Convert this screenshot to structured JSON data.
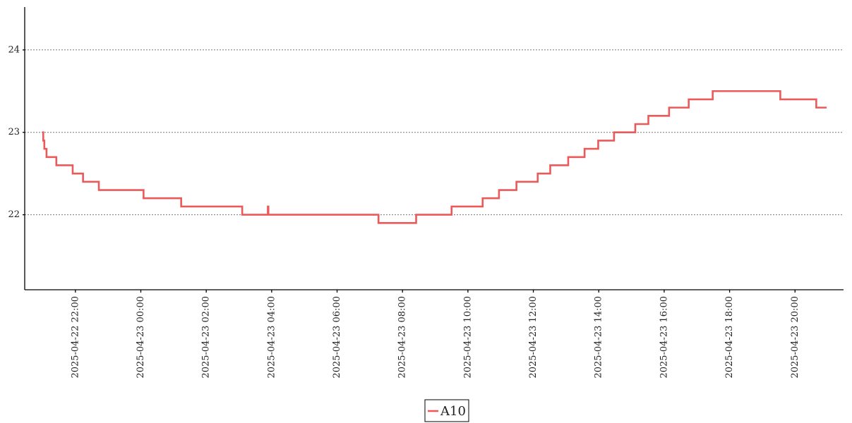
{
  "chart_data": {
    "type": "line",
    "step": "post",
    "x": [
      "2025-04-22 20:59",
      "2025-04-22 21:01",
      "2025-04-22 21:03",
      "2025-04-22 21:07",
      "2025-04-22 21:25",
      "2025-04-22 21:55",
      "2025-04-22 22:14",
      "2025-04-22 22:43",
      "2025-04-23 00:05",
      "2025-04-23 01:14",
      "2025-04-23 03:06",
      "2025-04-23 03:53",
      "2025-04-23 03:54",
      "2025-04-23 07:16",
      "2025-04-23 08:25",
      "2025-04-23 09:30",
      "2025-04-23 10:27",
      "2025-04-23 10:57",
      "2025-04-23 11:29",
      "2025-04-23 12:08",
      "2025-04-23 12:31",
      "2025-04-23 13:04",
      "2025-04-23 13:34",
      "2025-04-23 13:59",
      "2025-04-23 14:28",
      "2025-04-23 15:07",
      "2025-04-23 15:31",
      "2025-04-23 16:09",
      "2025-04-23 16:45",
      "2025-04-23 17:29",
      "2025-04-23 19:33",
      "2025-04-23 20:39",
      "2025-04-23 20:58"
    ],
    "series": [
      {
        "name": "A10",
        "color": "#eb5a5a",
        "values": [
          23.0,
          22.9,
          22.8,
          22.7,
          22.6,
          22.5,
          22.4,
          22.3,
          22.2,
          22.1,
          22.0,
          22.1,
          22.0,
          21.9,
          22.0,
          22.1,
          22.2,
          22.3,
          22.4,
          22.5,
          22.6,
          22.7,
          22.8,
          22.9,
          23.0,
          23.1,
          23.2,
          23.3,
          23.4,
          23.5,
          23.4,
          23.3,
          23.3
        ]
      }
    ],
    "xlim": [
      "2025-04-22 20:27",
      "2025-04-23 21:29"
    ],
    "xticks": [
      "2025-04-22 22:00",
      "2025-04-23 00:00",
      "2025-04-23 02:00",
      "2025-04-23 04:00",
      "2025-04-23 06:00",
      "2025-04-23 08:00",
      "2025-04-23 10:00",
      "2025-04-23 12:00",
      "2025-04-23 14:00",
      "2025-04-23 16:00",
      "2025-04-23 18:00",
      "2025-04-23 20:00"
    ],
    "ylim": [
      21.09,
      24.52
    ],
    "yticks": [
      22,
      23,
      24
    ],
    "grid": true,
    "legend": "bottom"
  }
}
